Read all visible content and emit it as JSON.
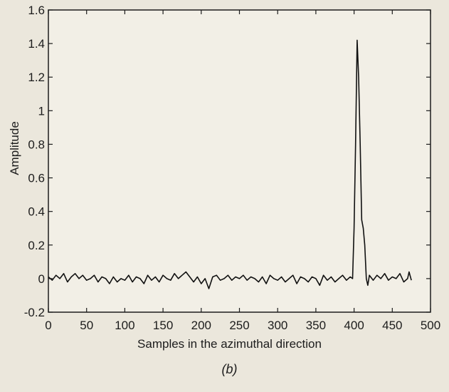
{
  "chart_data": {
    "type": "line",
    "caption": "(b)",
    "xlabel": "Samples in the azimuthal direction",
    "ylabel": "Amplitude",
    "xlim": [
      0,
      500
    ],
    "ylim": [
      -0.2,
      1.6
    ],
    "xticks": [
      0,
      50,
      100,
      150,
      200,
      250,
      300,
      350,
      400,
      450,
      500
    ],
    "yticks": [
      -0.2,
      0,
      0.2,
      0.4,
      0.6,
      0.8,
      1,
      1.2,
      1.4,
      1.6
    ],
    "ytick_labels": [
      "-0.2",
      "0",
      "0.2",
      "0.4",
      "0.6",
      "0.8",
      "1",
      "1.2",
      "1.4",
      "1.6"
    ],
    "grid": false,
    "line_color": "#111111",
    "series": [
      {
        "x": [
          0,
          5,
          10,
          15,
          20,
          25,
          30,
          35,
          40,
          45,
          50,
          55,
          60,
          65,
          70,
          75,
          80,
          85,
          90,
          95,
          100,
          105,
          110,
          115,
          120,
          125,
          130,
          135,
          140,
          145,
          150,
          155,
          160,
          165,
          170,
          175,
          180,
          185,
          190,
          195,
          200,
          205,
          210,
          215,
          220,
          225,
          230,
          235,
          240,
          245,
          250,
          255,
          260,
          265,
          270,
          275,
          280,
          285,
          290,
          295,
          300,
          305,
          310,
          315,
          320,
          325,
          330,
          335,
          340,
          345,
          350,
          355,
          360,
          365,
          370,
          375,
          380,
          385,
          390,
          395,
          398,
          400,
          402,
          404,
          406,
          408,
          410,
          412,
          414,
          416,
          418,
          420,
          425,
          430,
          435,
          440,
          445,
          450,
          455,
          460,
          465,
          470,
          472,
          475
        ],
        "y": [
          0.01,
          -0.01,
          0.02,
          0.0,
          0.03,
          -0.02,
          0.01,
          0.03,
          0.0,
          0.02,
          -0.01,
          0.0,
          0.02,
          -0.02,
          0.01,
          0.0,
          -0.03,
          0.01,
          -0.02,
          0.0,
          -0.01,
          0.02,
          -0.02,
          0.01,
          0.0,
          -0.03,
          0.02,
          -0.01,
          0.01,
          -0.02,
          0.02,
          0.0,
          -0.01,
          0.03,
          0.0,
          0.02,
          0.04,
          0.01,
          -0.02,
          0.01,
          -0.03,
          0.0,
          -0.06,
          0.01,
          0.02,
          -0.01,
          0.0,
          0.02,
          -0.01,
          0.01,
          0.0,
          0.02,
          -0.01,
          0.01,
          0.0,
          -0.02,
          0.01,
          -0.03,
          0.02,
          0.0,
          -0.01,
          0.01,
          -0.02,
          0.0,
          0.02,
          -0.03,
          0.01,
          0.0,
          -0.02,
          0.01,
          0.0,
          -0.04,
          0.02,
          -0.01,
          0.01,
          -0.02,
          0.0,
          0.02,
          -0.01,
          0.01,
          0.0,
          0.3,
          0.8,
          1.42,
          1.2,
          0.8,
          0.35,
          0.3,
          0.2,
          0.0,
          -0.04,
          0.02,
          -0.01,
          0.02,
          0.0,
          0.03,
          -0.01,
          0.01,
          0.0,
          0.03,
          -0.02,
          0.0,
          0.04,
          -0.01
        ]
      }
    ]
  }
}
